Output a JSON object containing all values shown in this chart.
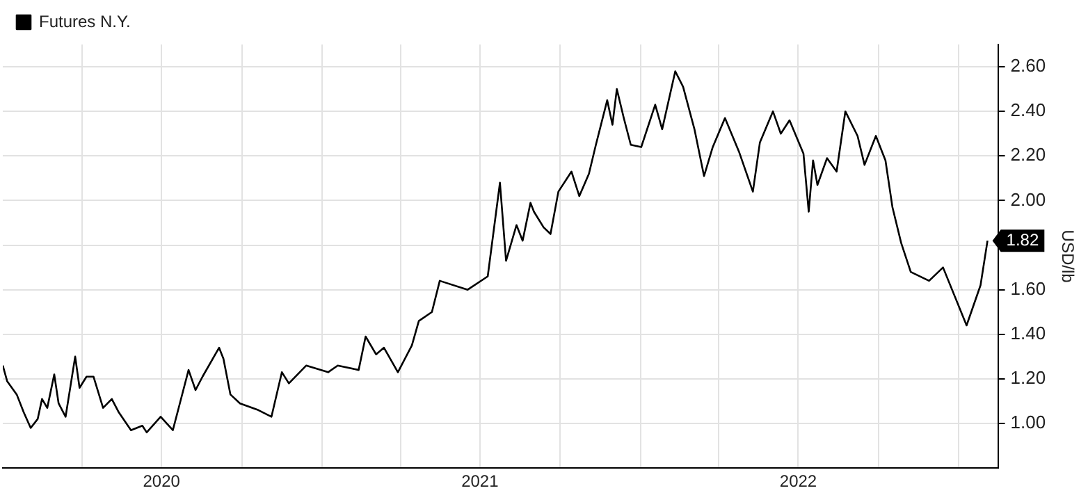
{
  "chart_data": {
    "type": "line",
    "ylabel": "USD/lb",
    "legend": "top left",
    "grid": true,
    "marker": "none",
    "line_style": "solid",
    "xlim": [
      "2020-01-01",
      "2023-02-15"
    ],
    "ylim": [
      0.8,
      2.7
    ],
    "xticks": [
      {
        "value": "2020-04-01",
        "label": null
      },
      {
        "value": "2020-07-01",
        "label": "2020"
      },
      {
        "value": "2020-10-01",
        "label": null
      },
      {
        "value": "2021-01-01",
        "label": null
      },
      {
        "value": "2021-04-01",
        "label": null
      },
      {
        "value": "2021-07-01",
        "label": "2021"
      },
      {
        "value": "2021-10-01",
        "label": null
      },
      {
        "value": "2022-01-01",
        "label": null
      },
      {
        "value": "2022-04-01",
        "label": null
      },
      {
        "value": "2022-07-01",
        "label": "2022"
      },
      {
        "value": "2022-10-01",
        "label": null
      },
      {
        "value": "2023-01-01",
        "label": null
      }
    ],
    "yticks": [
      {
        "value": 1,
        "label": "1.00"
      },
      {
        "value": 1.2,
        "label": "1.20"
      },
      {
        "value": 1.4,
        "label": "1.40"
      },
      {
        "value": 1.6,
        "label": "1.60"
      },
      {
        "value": 1.8,
        "label": null
      },
      {
        "value": 2,
        "label": "2.00"
      },
      {
        "value": 2.2,
        "label": "2.20"
      },
      {
        "value": 2.4,
        "label": "2.40"
      },
      {
        "value": 2.6,
        "label": "2.60"
      }
    ],
    "annotations": [
      "1.82"
    ],
    "series": [
      {
        "name": "Futures N.Y.",
        "color": "#000000",
        "x": [
          "2020-01-01",
          "2020-01-06",
          "2020-01-17",
          "2020-01-25",
          "2020-02-02",
          "2020-02-10",
          "2020-02-15",
          "2020-02-21",
          "2020-02-29",
          "2020-03-05",
          "2020-03-13",
          "2020-03-24",
          "2020-03-29",
          "2020-04-06",
          "2020-04-14",
          "2020-04-25",
          "2020-05-05",
          "2020-05-13",
          "2020-05-27",
          "2020-06-09",
          "2020-06-14",
          "2020-06-30",
          "2020-07-14",
          "2020-07-22",
          "2020-08-01",
          "2020-08-09",
          "2020-08-17",
          "2020-09-05",
          "2020-09-10",
          "2020-09-18",
          "2020-09-29",
          "2020-10-20",
          "2020-11-04",
          "2020-11-16",
          "2020-11-24",
          "2020-12-14",
          "2021-01-08",
          "2021-01-19",
          "2021-02-12",
          "2021-02-20",
          "2021-03-04",
          "2021-03-13",
          "2021-03-29",
          "2021-04-14",
          "2021-04-22",
          "2021-05-07",
          "2021-05-16",
          "2021-06-17",
          "2021-07-10",
          "2021-07-24",
          "2021-07-31",
          "2021-08-12",
          "2021-08-19",
          "2021-08-28",
          "2021-09-01",
          "2021-09-12",
          "2021-09-20",
          "2021-09-29",
          "2021-10-14",
          "2021-10-23",
          "2021-11-03",
          "2021-11-11",
          "2021-11-24",
          "2021-11-30",
          "2021-12-05",
          "2021-12-13",
          "2021-12-21",
          "2022-01-02",
          "2022-01-18",
          "2022-01-26",
          "2022-02-10",
          "2022-02-19",
          "2022-03-04",
          "2022-03-15",
          "2022-03-25",
          "2022-04-08",
          "2022-04-24",
          "2022-05-10",
          "2022-05-18",
          "2022-06-02",
          "2022-06-11",
          "2022-06-21",
          "2022-07-07",
          "2022-07-13",
          "2022-07-18",
          "2022-07-23",
          "2022-08-03",
          "2022-08-14",
          "2022-08-24",
          "2022-09-07",
          "2022-09-15",
          "2022-09-28",
          "2022-10-09",
          "2022-10-17",
          "2022-10-27",
          "2022-11-07",
          "2022-11-28",
          "2022-12-14",
          "2023-01-10",
          "2023-01-26",
          "2023-02-03"
        ],
        "values": [
          1.26,
          1.19,
          1.13,
          1.05,
          0.98,
          1.02,
          1.11,
          1.07,
          1.22,
          1.09,
          1.03,
          1.3,
          1.16,
          1.21,
          1.21,
          1.07,
          1.11,
          1.05,
          0.97,
          0.99,
          0.96,
          1.03,
          0.97,
          1.09,
          1.24,
          1.15,
          1.21,
          1.34,
          1.29,
          1.13,
          1.09,
          1.06,
          1.03,
          1.23,
          1.18,
          1.26,
          1.23,
          1.26,
          1.24,
          1.39,
          1.31,
          1.34,
          1.23,
          1.35,
          1.46,
          1.5,
          1.64,
          1.6,
          1.66,
          2.08,
          1.73,
          1.89,
          1.82,
          1.99,
          1.95,
          1.88,
          1.85,
          2.04,
          2.13,
          2.02,
          2.12,
          2.25,
          2.45,
          2.34,
          2.5,
          2.37,
          2.25,
          2.24,
          2.43,
          2.32,
          2.58,
          2.51,
          2.32,
          2.11,
          2.24,
          2.37,
          2.22,
          2.04,
          2.26,
          2.4,
          2.3,
          2.36,
          2.21,
          1.95,
          2.18,
          2.07,
          2.19,
          2.13,
          2.4,
          2.29,
          2.16,
          2.29,
          2.18,
          1.97,
          1.81,
          1.68,
          1.64,
          1.7,
          1.44,
          1.62,
          1.82
        ]
      }
    ]
  }
}
